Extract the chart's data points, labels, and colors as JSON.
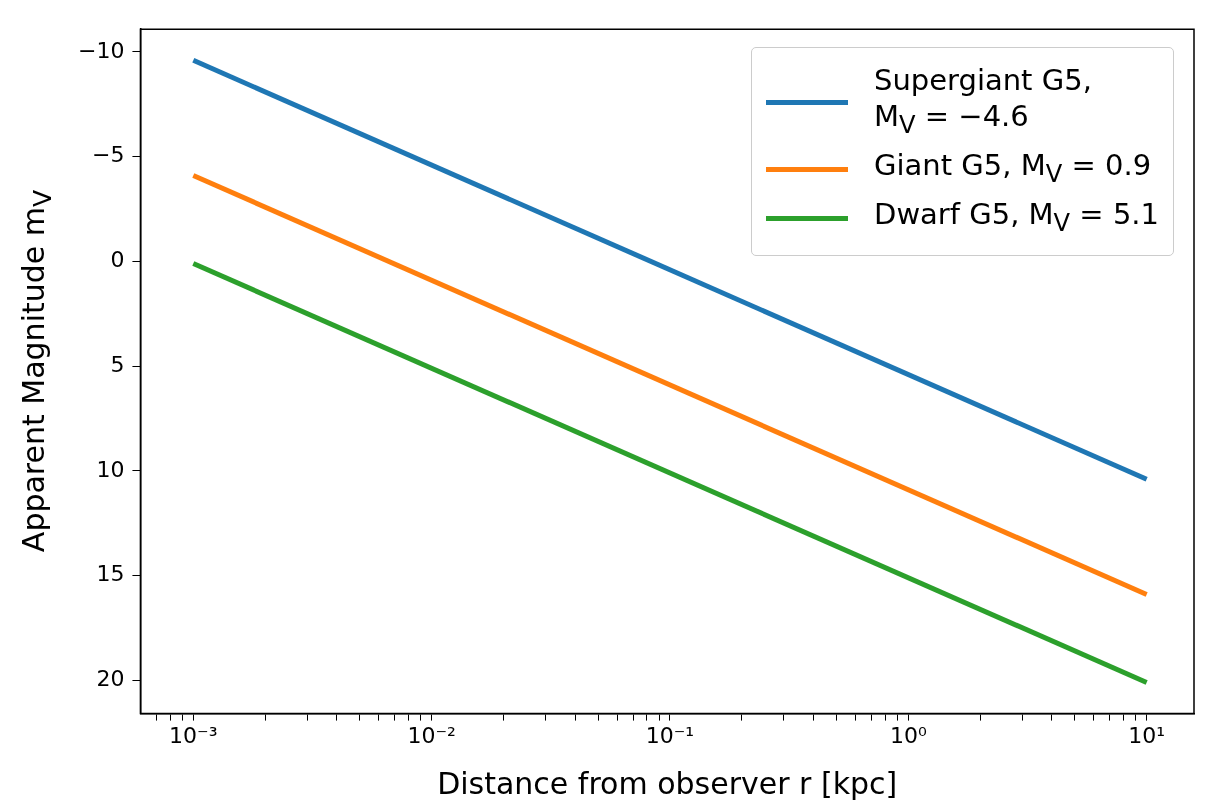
{
  "chart_data": {
    "type": "line",
    "xlabel": "Distance from observer r [kpc]",
    "ylabel": "Apparent Magnitude m$_{V}$",
    "log": "x",
    "legend": "top right",
    "xlim": [
      0.00063,
      15.8
    ],
    "ylim": [
      21.585,
      -11.085
    ],
    "xticks": [
      {
        "value": 0.0007,
        "label": null
      },
      {
        "value": 0.0008,
        "label": null
      },
      {
        "value": 0.0009,
        "label": null
      },
      {
        "value": 0.001,
        "label": "10⁻³"
      },
      {
        "value": 0.002,
        "label": null
      },
      {
        "value": 0.003,
        "label": null
      },
      {
        "value": 0.004,
        "label": null
      },
      {
        "value": 0.005,
        "label": null
      },
      {
        "value": 0.006,
        "label": null
      },
      {
        "value": 0.007,
        "label": null
      },
      {
        "value": 0.008,
        "label": null
      },
      {
        "value": 0.009,
        "label": null
      },
      {
        "value": 0.01,
        "label": "10⁻²"
      },
      {
        "value": 0.02,
        "label": null
      },
      {
        "value": 0.03,
        "label": null
      },
      {
        "value": 0.04,
        "label": null
      },
      {
        "value": 0.05,
        "label": null
      },
      {
        "value": 0.06,
        "label": null
      },
      {
        "value": 0.07,
        "label": null
      },
      {
        "value": 0.08,
        "label": null
      },
      {
        "value": 0.09,
        "label": null
      },
      {
        "value": 0.1,
        "label": "10⁻¹"
      },
      {
        "value": 0.2,
        "label": null
      },
      {
        "value": 0.3,
        "label": null
      },
      {
        "value": 0.4,
        "label": null
      },
      {
        "value": 0.5,
        "label": null
      },
      {
        "value": 0.6,
        "label": null
      },
      {
        "value": 0.7,
        "label": null
      },
      {
        "value": 0.8,
        "label": null
      },
      {
        "value": 0.9,
        "label": null
      },
      {
        "value": 1,
        "label": "10⁰"
      },
      {
        "value": 2,
        "label": null
      },
      {
        "value": 3,
        "label": null
      },
      {
        "value": 4,
        "label": null
      },
      {
        "value": 5,
        "label": null
      },
      {
        "value": 6,
        "label": null
      },
      {
        "value": 7,
        "label": null
      },
      {
        "value": 8,
        "label": null
      },
      {
        "value": 9,
        "label": null
      },
      {
        "value": 10,
        "label": "10¹"
      }
    ],
    "yticks": [
      {
        "value": -10,
        "label": "−10"
      },
      {
        "value": -5,
        "label": "−5"
      },
      0,
      5,
      10,
      15,
      20
    ],
    "x": [
      0.001,
      10
    ],
    "series": [
      {
        "name": "Supergiant G5,\n M$_{V}$ = −4.6",
        "color": "#1f77b4",
        "values": [
          -9.6,
          10.4
        ]
      },
      {
        "name": "Giant G5, M$_{V}$ = 0.9",
        "color": "#ff7f0e",
        "values": [
          -4.1,
          15.9
        ]
      },
      {
        "name": "Dwarf G5, M$_{V}$ = 5.1",
        "color": "#2ca02c",
        "values": [
          0.1,
          20.1
        ]
      }
    ]
  }
}
